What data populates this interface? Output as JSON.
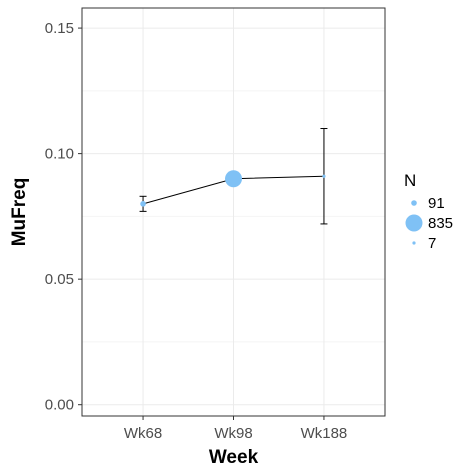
{
  "chart_data": {
    "type": "line",
    "xlabel": "Week",
    "ylabel": "MuFreq",
    "categories": [
      "Wk68",
      "Wk98",
      "Wk188"
    ],
    "y": [
      0.08,
      0.09,
      0.091
    ],
    "error_low": [
      0.077,
      0.089,
      0.072
    ],
    "error_high": [
      0.083,
      0.091,
      0.11
    ],
    "N": [
      91,
      835,
      7
    ],
    "ylim": [
      -0.0045,
      0.158
    ],
    "yticks": [
      "0.00",
      "0.05",
      "0.10",
      "0.15"
    ],
    "ytick_values": [
      0,
      0.05,
      0.1,
      0.15
    ],
    "grid": true,
    "legend": {
      "title": "N",
      "position": "right",
      "entries": [
        "91",
        "835",
        "7"
      ]
    },
    "colors": {
      "point": "#7fc1f5",
      "line": "#000000",
      "grid": "#ebebeb",
      "panel_border": "#333333"
    }
  }
}
